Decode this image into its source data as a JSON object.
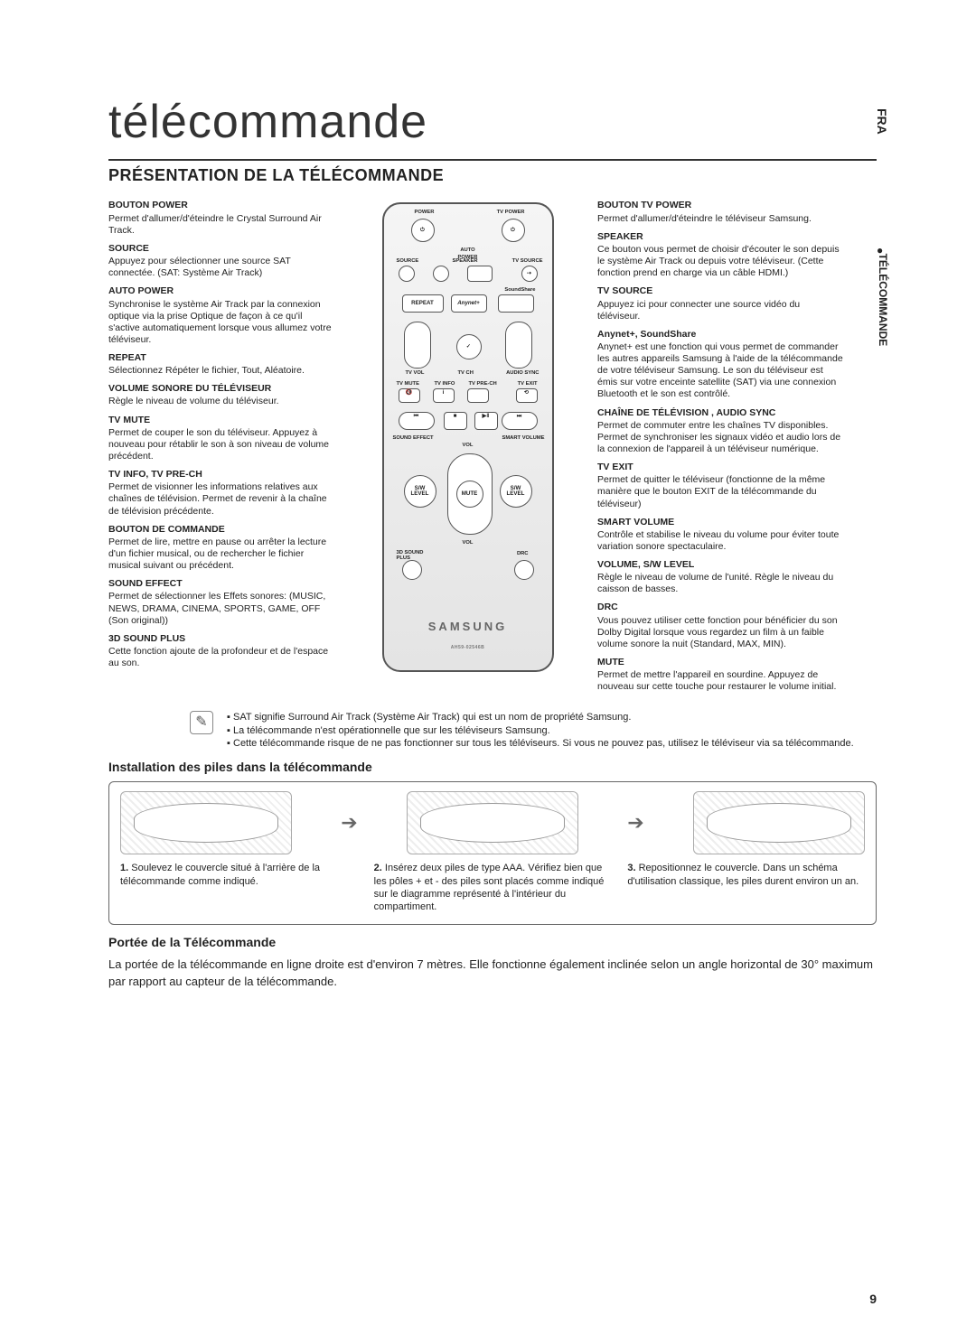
{
  "lang_tab": "FRA",
  "side_tab": "TÉLÉCOMMANDE",
  "page_title": "télécommande",
  "section_heading": "PRÉSENTATION DE LA TÉLÉCOMMANDE",
  "page_number": "9",
  "left_callouts": [
    {
      "h": "BOUTON POWER",
      "p": "Permet d'allumer/d'éteindre le Crystal Surround Air Track."
    },
    {
      "h": "SOURCE",
      "p": "Appuyez pour sélectionner une source SAT connectée. (SAT: Système Air Track)"
    },
    {
      "h": "AUTO POWER",
      "p": "Synchronise le système Air Track par la connexion optique via la prise Optique de façon à ce qu'il s'active automatiquement lorsque vous allumez votre téléviseur."
    },
    {
      "h": "REPEAT",
      "p": "Sélectionnez Répéter le fichier, Tout, Aléatoire."
    },
    {
      "h": "VOLUME SONORE DU TÉLÉVISEUR",
      "p": "Règle le niveau de volume du téléviseur."
    },
    {
      "h": "TV MUTE",
      "p": "Permet de couper le son du téléviseur. Appuyez à nouveau pour rétablir le son à son niveau de volume précédent."
    },
    {
      "h": "TV INFO, TV PRE-CH",
      "p": "Permet de visionner les informations relatives aux chaînes de télévision. Permet de revenir à la chaîne de télévision précédente."
    },
    {
      "h": "BOUTON DE COMMANDE",
      "p": "Permet de lire, mettre en pause ou arrêter la lecture d'un fichier musical, ou de rechercher le fichier musical suivant ou précédent."
    },
    {
      "h": "SOUND EFFECT",
      "p": "Permet de sélectionner les Effets sonores: (MUSIC, NEWS, DRAMA, CINEMA, SPORTS, GAME, OFF (Son original))"
    },
    {
      "h": "3D SOUND PLUS",
      "p": "Cette fonction ajoute de la profondeur et de l'espace au son."
    }
  ],
  "right_callouts": [
    {
      "h": "BOUTON TV POWER",
      "p": "Permet d'allumer/d'éteindre le téléviseur Samsung."
    },
    {
      "h": "SPEAKER",
      "p": "Ce bouton vous permet de choisir d'écouter le son depuis le système Air Track ou depuis votre téléviseur. (Cette fonction prend en charge via un câble HDMI.)"
    },
    {
      "h": "TV SOURCE",
      "p": "Appuyez ici pour connecter une source vidéo du téléviseur."
    },
    {
      "h": "Anynet+, SoundShare",
      "p": "Anynet+ est une fonction qui vous permet de commander les autres appareils Samsung à l'aide de la télécommande de votre téléviseur Samsung. Le son du téléviseur est émis sur votre enceinte satellite (SAT) via une connexion Bluetooth et le son est contrôlé."
    },
    {
      "h": "CHAÎNE DE TÉLÉVISION , AUDIO SYNC",
      "p": "Permet de commuter entre les chaînes TV disponibles. Permet de synchroniser les signaux vidéo et audio lors de la connexion de l'appareil à un téléviseur numérique."
    },
    {
      "h": "TV EXIT",
      "p": "Permet de quitter le téléviseur (fonctionne de la même manière que le bouton EXIT de la télécommande du téléviseur)"
    },
    {
      "h": "SMART VOLUME",
      "p": "Contrôle et stabilise le niveau du volume pour éviter toute variation sonore spectaculaire."
    },
    {
      "h": "VOLUME, S/W LEVEL",
      "p": "Règle le niveau de volume de l'unité. Règle le niveau du caisson de basses."
    },
    {
      "h": "DRC",
      "p": "Vous pouvez utiliser cette fonction pour bénéficier du son Dolby Digital lorsque vous regardez un film à un faible volume sonore la nuit (Standard, MAX, MIN)."
    },
    {
      "h": "MUTE",
      "p": "Permet de mettre l'appareil en sourdine. Appuyez de nouveau sur cette touche pour restaurer le volume initial."
    }
  ],
  "notes": [
    "SAT signifie Surround Air Track (Système Air Track) qui est un nom de propriété Samsung.",
    "La télécommande n'est opérationnelle que sur les téléviseurs Samsung.",
    "Cette télécommande risque de ne pas fonctionner sur tous les téléviseurs. Si vous ne pouvez pas, utilisez le téléviseur via sa télécommande."
  ],
  "battery": {
    "heading": "Installation des piles dans la télécommande",
    "steps": [
      {
        "n": "1.",
        "t": "Soulevez le couvercle situé à l'arrière de la télécommande comme indiqué."
      },
      {
        "n": "2.",
        "t": "Insérez deux piles de type AAA. Vérifiez bien que les pôles + et - des piles sont placés comme indiqué sur le diagramme représenté à l'intérieur du compartiment."
      },
      {
        "n": "3.",
        "t": "Repositionnez le couvercle. Dans un schéma d'utilisation classique, les piles durent environ un an."
      }
    ]
  },
  "range": {
    "heading": "Portée de la Télécommande",
    "text": "La portée de la télécommande en ligne droite est d'environ 7 mètres. Elle fonctionne également inclinée selon un angle horizontal de 30° maximum par rapport au capteur de la télécommande."
  },
  "remote": {
    "brand": "SAMSUNG",
    "model": "AH59-02546B",
    "labels": {
      "power": "POWER",
      "tvpower": "TV POWER",
      "auto_power": "AUTO\nPOWER",
      "source": "SOURCE",
      "speaker": "SPEAKER",
      "tvsource": "TV SOURCE",
      "soundshare": "SoundShare",
      "repeat": "REPEAT",
      "anynet": "Anynet+",
      "tvvol": "TV VOL",
      "tvch": "TV CH",
      "audiosync": "AUDIO SYNC",
      "tvmute": "TV MUTE",
      "tvinfo": "TV INFO",
      "tvprech": "TV PRE-CH",
      "tvexit": "TV EXIT",
      "soundeffect": "SOUND EFFECT",
      "smartvolume": "SMART VOLUME",
      "vol": "VOL",
      "mute": "MUTE",
      "sw": "S/W\nLEVEL",
      "soundplus": "3D SOUND\nPLUS",
      "drc": "DRC"
    }
  }
}
